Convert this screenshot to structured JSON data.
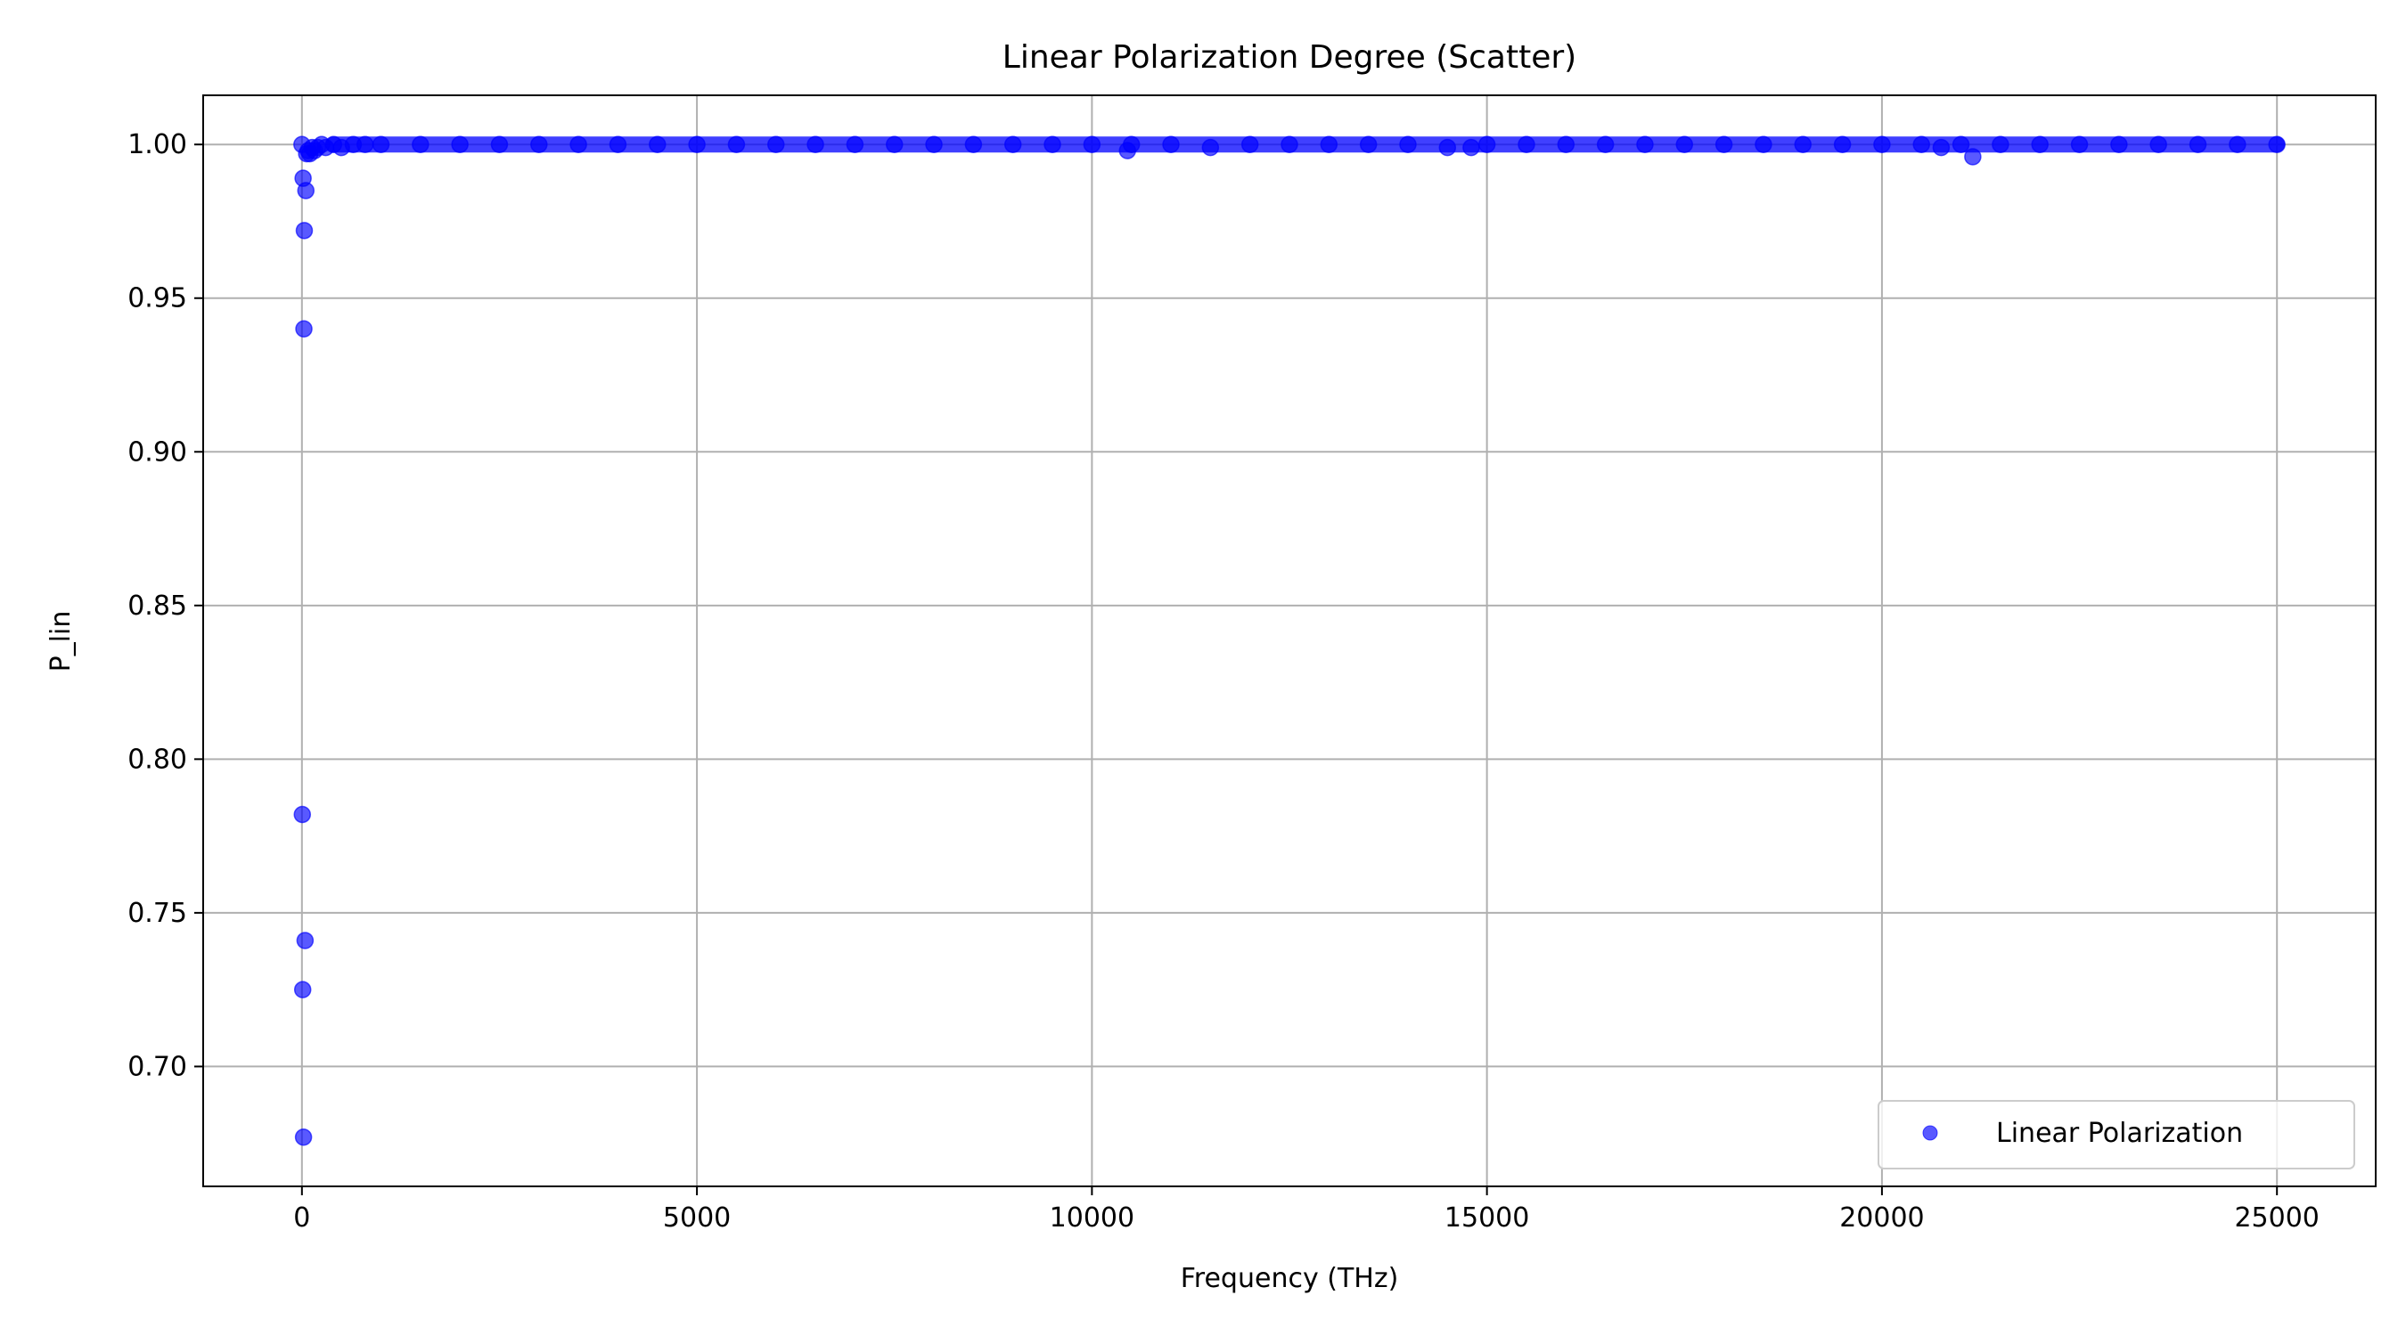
{
  "chart_data": {
    "type": "scatter",
    "title": "Linear Polarization Degree (Scatter)",
    "xlabel": "Frequency (THz)",
    "ylabel": "P_lin",
    "xlim": [
      -1250,
      26250
    ],
    "ylim": [
      0.661,
      1.016
    ],
    "xticks": [
      0,
      5000,
      10000,
      15000,
      20000,
      25000
    ],
    "xtick_labels": [
      "0",
      "5000",
      "10000",
      "15000",
      "20000",
      "25000"
    ],
    "yticks": [
      0.7,
      0.75,
      0.8,
      0.85,
      0.9,
      0.95,
      1.0
    ],
    "ytick_labels": [
      "0.70",
      "0.75",
      "0.80",
      "0.85",
      "0.90",
      "0.95",
      "1.00"
    ],
    "grid": true,
    "legend_position": "lower-right",
    "series": [
      {
        "name": "Linear Polarization",
        "color": "#0000ff",
        "x": [
          0,
          5,
          10,
          15,
          20,
          25,
          30,
          40,
          50,
          60,
          80,
          100,
          130,
          160,
          200,
          250,
          300,
          400,
          500,
          650,
          800,
          1000,
          1500,
          2000,
          2500,
          3000,
          3500,
          4000,
          4500,
          5000,
          5500,
          6000,
          6500,
          7000,
          7500,
          8000,
          8500,
          9000,
          9500,
          10000,
          10450,
          10500,
          11000,
          11500,
          12000,
          12500,
          13000,
          13500,
          14000,
          14500,
          14800,
          15000,
          15500,
          16000,
          16500,
          17000,
          17500,
          18000,
          18500,
          19000,
          19500,
          20000,
          20500,
          20750,
          21000,
          21150,
          21500,
          22000,
          22500,
          23000,
          23500,
          24000,
          24500,
          25000
        ],
        "y": [
          1.0,
          0.782,
          0.725,
          0.989,
          0.677,
          0.94,
          0.972,
          0.741,
          0.985,
          0.997,
          0.998,
          0.997,
          0.999,
          0.998,
          0.999,
          1.0,
          0.999,
          1.0,
          0.999,
          1.0,
          1.0,
          1.0,
          1.0,
          1.0,
          1.0,
          1.0,
          1.0,
          1.0,
          1.0,
          1.0,
          1.0,
          1.0,
          1.0,
          1.0,
          1.0,
          1.0,
          1.0,
          1.0,
          1.0,
          1.0,
          0.998,
          1.0,
          1.0,
          0.999,
          1.0,
          1.0,
          1.0,
          1.0,
          1.0,
          0.999,
          0.999,
          1.0,
          1.0,
          1.0,
          1.0,
          1.0,
          1.0,
          1.0,
          1.0,
          1.0,
          1.0,
          1.0,
          1.0,
          0.999,
          1.0,
          0.996,
          1.0,
          1.0,
          1.0,
          1.0,
          1.0,
          1.0,
          1.0,
          1.0
        ]
      }
    ]
  }
}
